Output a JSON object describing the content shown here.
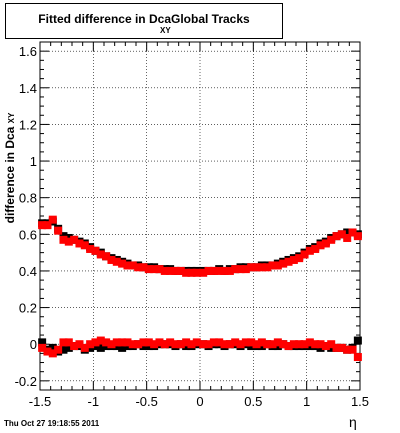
{
  "title": {
    "prefix": "Fitted difference in Dca",
    "subscript": "XY",
    "suffix": "Global Tracks"
  },
  "footer": "Thu Oct 27 19:18:55 2011",
  "chart_data": {
    "type": "scatter",
    "xlabel": "η",
    "ylabel": "difference in Dca",
    "ylabel_subscript": "XY",
    "xlim": [
      -1.5,
      1.5
    ],
    "ylim": [
      -0.25,
      1.65
    ],
    "x_ticks": [
      "-1.5",
      "-1",
      "-0.5",
      "0",
      "0.5",
      "1",
      "1.5"
    ],
    "y_ticks": [
      "-0.2",
      "0",
      "0.2",
      "0.4",
      "0.6",
      "0.8",
      "1",
      "1.2",
      "1.4",
      "1.6"
    ],
    "grid": true,
    "colors": {
      "series1": "#000000",
      "series2": "#ff0000"
    },
    "x": [
      -1.48,
      -1.43,
      -1.38,
      -1.33,
      -1.28,
      -1.23,
      -1.18,
      -1.13,
      -1.08,
      -1.03,
      -0.98,
      -0.93,
      -0.88,
      -0.83,
      -0.78,
      -0.73,
      -0.68,
      -0.63,
      -0.58,
      -0.53,
      -0.48,
      -0.43,
      -0.38,
      -0.33,
      -0.28,
      -0.23,
      -0.18,
      -0.13,
      -0.08,
      -0.03,
      0.03,
      0.08,
      0.13,
      0.18,
      0.23,
      0.28,
      0.33,
      0.38,
      0.43,
      0.48,
      0.53,
      0.58,
      0.63,
      0.68,
      0.73,
      0.78,
      0.83,
      0.88,
      0.93,
      0.98,
      1.03,
      1.08,
      1.13,
      1.18,
      1.23,
      1.28,
      1.33,
      1.38,
      1.43,
      1.48
    ],
    "series": [
      {
        "values": [
          0.66,
          0.66,
          0.67,
          0.63,
          0.59,
          0.58,
          0.57,
          0.56,
          0.55,
          0.53,
          0.51,
          0.5,
          0.48,
          0.47,
          0.46,
          0.45,
          0.44,
          0.43,
          0.43,
          0.42,
          0.42,
          0.42,
          0.41,
          0.41,
          0.41,
          0.4,
          0.4,
          0.4,
          0.4,
          0.4,
          0.4,
          0.4,
          0.4,
          0.41,
          0.4,
          0.41,
          0.41,
          0.42,
          0.42,
          0.42,
          0.42,
          0.43,
          0.43,
          0.43,
          0.44,
          0.45,
          0.46,
          0.47,
          0.48,
          0.5,
          0.52,
          0.53,
          0.55,
          0.56,
          0.58,
          0.59,
          0.6,
          0.61,
          0.61,
          0.6
        ]
      },
      {
        "values": [
          0.65,
          0.65,
          0.68,
          0.62,
          0.57,
          0.56,
          0.57,
          0.55,
          0.54,
          0.52,
          0.51,
          0.49,
          0.48,
          0.46,
          0.45,
          0.44,
          0.43,
          0.43,
          0.42,
          0.42,
          0.41,
          0.41,
          0.41,
          0.4,
          0.4,
          0.4,
          0.4,
          0.39,
          0.39,
          0.39,
          0.39,
          0.4,
          0.4,
          0.4,
          0.4,
          0.4,
          0.41,
          0.41,
          0.41,
          0.42,
          0.42,
          0.42,
          0.42,
          0.43,
          0.43,
          0.44,
          0.45,
          0.46,
          0.47,
          0.49,
          0.51,
          0.52,
          0.54,
          0.55,
          0.57,
          0.59,
          0.6,
          0.58,
          0.61,
          0.59
        ]
      },
      {
        "values": [
          0.01,
          -0.03,
          -0.02,
          -0.04,
          -0.03,
          -0.02,
          -0.01,
          -0.01,
          -0.03,
          -0.02,
          -0.01,
          -0.02,
          -0.01,
          -0.01,
          -0.01,
          -0.02,
          -0.01,
          -0.01,
          0.0,
          -0.01,
          -0.01,
          -0.01,
          0.0,
          0.0,
          0.0,
          -0.01,
          0.0,
          -0.01,
          -0.01,
          0.0,
          0.0,
          -0.01,
          0.0,
          0.0,
          -0.01,
          0.0,
          0.0,
          -0.01,
          0.0,
          -0.01,
          -0.01,
          -0.01,
          0.0,
          -0.01,
          -0.01,
          0.0,
          -0.01,
          -0.01,
          -0.01,
          -0.01,
          -0.01,
          -0.01,
          -0.02,
          -0.01,
          -0.02,
          -0.02,
          -0.02,
          -0.03,
          -0.02,
          0.02
        ]
      },
      {
        "values": [
          -0.02,
          -0.04,
          -0.05,
          -0.03,
          0.01,
          0.01,
          -0.01,
          0.0,
          -0.02,
          0.0,
          0.01,
          0.02,
          0.01,
          0.0,
          0.01,
          0.01,
          0.01,
          0.0,
          0.0,
          0.01,
          0.01,
          0.0,
          0.01,
          0.0,
          0.01,
          0.0,
          0.0,
          0.01,
          0.0,
          0.01,
          0.0,
          0.0,
          0.01,
          0.01,
          0.0,
          0.0,
          0.01,
          0.0,
          0.01,
          0.01,
          0.0,
          0.01,
          0.0,
          0.0,
          0.01,
          0.0,
          -0.01,
          0.0,
          0.0,
          0.0,
          0.01,
          0.0,
          0.0,
          -0.01,
          0.0,
          -0.02,
          -0.02,
          -0.03,
          -0.03,
          -0.07
        ]
      }
    ]
  }
}
